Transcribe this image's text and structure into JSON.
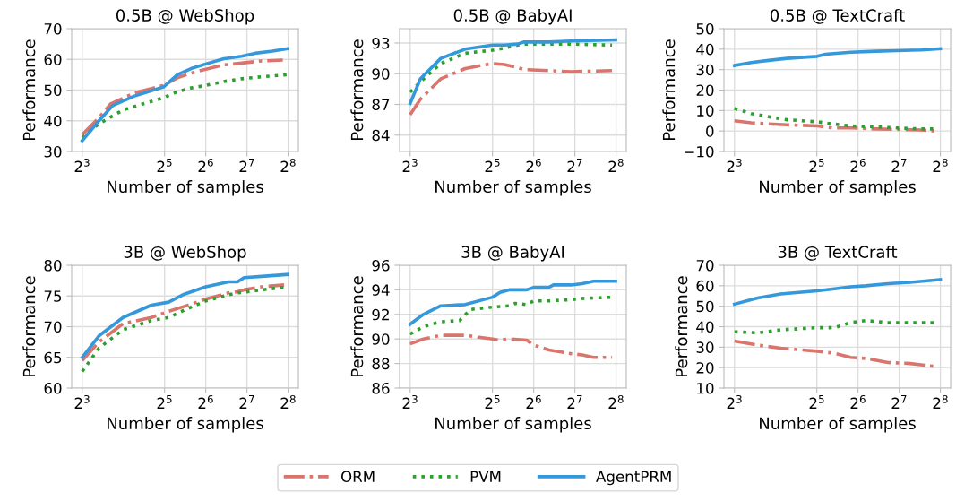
{
  "chart_data": [
    {
      "type": "line",
      "title": "0.5B @ WebShop",
      "xlabel": "Number of samples",
      "ylabel": "Performance",
      "log": "x",
      "xlim": [
        6.7,
        304
      ],
      "xticks": [
        {
          "value": 8,
          "label": "2$^{3}$"
        },
        {
          "value": 32,
          "label": "2$^{5}$"
        },
        {
          "value": 64,
          "label": "2$^{6}$"
        },
        {
          "value": 128,
          "label": "2$^{7}$"
        },
        {
          "value": 256,
          "label": "2$^{8}$"
        }
      ],
      "ylim": [
        30,
        70
      ],
      "yticks": [
        30,
        40,
        50,
        60,
        70
      ],
      "grid": true,
      "series": [
        {
          "color": "#d9756d",
          "line_style": "dashdot",
          "x": [
            8,
            10.6,
            12.9,
            19.1,
            31.4,
            39.7,
            49.9,
            64,
            86.8,
            117,
            163,
            234
          ],
          "values": [
            35.5,
            41,
            45.5,
            49,
            51.5,
            54,
            55.5,
            56.8,
            58.2,
            58.8,
            59.5,
            59.8
          ]
        },
        {
          "color": "#2ca02c",
          "line_style": "dotted",
          "x": [
            8,
            10.6,
            15.9,
            31.4,
            39.7,
            49.9,
            64,
            86.8,
            117,
            163,
            252
          ],
          "values": [
            34.5,
            39,
            43.5,
            47.5,
            49.5,
            50.7,
            51.5,
            52.8,
            53.7,
            54.3,
            55
          ]
        },
        {
          "color": "#3498db",
          "line_style": "solid",
          "x": [
            8,
            10.6,
            13.4,
            19.1,
            31.4,
            39.7,
            49.9,
            64,
            86.8,
            117,
            147,
            197,
            254
          ],
          "values": [
            33.5,
            40,
            45,
            48,
            51,
            55,
            57,
            58.5,
            60.2,
            61,
            62,
            62.7,
            63.5
          ]
        }
      ]
    },
    {
      "type": "line",
      "title": "0.5B @ BabyAI",
      "xlabel": "Number of samples",
      "ylabel": "Performance",
      "log": "x",
      "xlim": [
        6.7,
        304
      ],
      "xticks": [
        {
          "value": 8,
          "label": "2$^{3}$"
        },
        {
          "value": 32,
          "label": "2$^{5}$"
        },
        {
          "value": 64,
          "label": "2$^{6}$"
        },
        {
          "value": 128,
          "label": "2$^{7}$"
        },
        {
          "value": 256,
          "label": "2$^{8}$"
        }
      ],
      "ylim": [
        82.4,
        94.4
      ],
      "yticks": [
        84,
        87,
        90,
        93
      ],
      "grid": true,
      "series": [
        {
          "color": "#d9756d",
          "line_style": "dashdot",
          "x": [
            8,
            9.5,
            13.4,
            20.2,
            32,
            39.1,
            48.8,
            54.6,
            82.7,
            120,
            239
          ],
          "values": [
            86,
            87.5,
            89.5,
            90.5,
            91,
            90.9,
            90.6,
            90.4,
            90.3,
            90.2,
            90.3
          ]
        },
        {
          "color": "#2ca02c",
          "line_style": "dotted",
          "x": [
            8,
            9.5,
            13.4,
            20.2,
            32,
            39.1,
            48.8,
            54.6,
            82.7,
            120,
            239
          ],
          "values": [
            88.2,
            89.2,
            91,
            92,
            92.3,
            92.5,
            92.8,
            92.9,
            92.9,
            92.9,
            92.8
          ]
        },
        {
          "color": "#3498db",
          "line_style": "solid",
          "x": [
            8,
            9.5,
            13.4,
            20.2,
            32,
            39.1,
            48.8,
            54.6,
            82.7,
            120,
            254
          ],
          "values": [
            87.1,
            89.5,
            91.5,
            92.4,
            92.8,
            92.8,
            92.9,
            93.1,
            93.1,
            93.2,
            93.3
          ]
        }
      ]
    },
    {
      "type": "line",
      "title": "0.5B @ TextCraft",
      "xlabel": "Number of samples",
      "ylabel": "Performance",
      "log": "x",
      "xlim": [
        6.7,
        304
      ],
      "xticks": [
        {
          "value": 8,
          "label": "2$^{3}$"
        },
        {
          "value": 32,
          "label": "2$^{5}$"
        },
        {
          "value": 64,
          "label": "2$^{6}$"
        },
        {
          "value": 128,
          "label": "2$^{7}$"
        },
        {
          "value": 256,
          "label": "2$^{8}$"
        }
      ],
      "ylim": [
        -10,
        50
      ],
      "yticks": [
        {
          "value": -10,
          "label": "−10"
        },
        0,
        10,
        20,
        30,
        40,
        50
      ],
      "grid": true,
      "series": [
        {
          "color": "#d9756d",
          "line_style": "dashdot",
          "x": [
            8,
            10.6,
            14.2,
            19.4,
            32.2,
            41.4,
            56.5,
            87.4,
            122,
            186,
            231
          ],
          "values": [
            5,
            4,
            3.5,
            3,
            2.5,
            1.5,
            1.5,
            1,
            0.8,
            0.5,
            0
          ]
        },
        {
          "color": "#2ca02c",
          "line_style": "dotted",
          "x": [
            8,
            10.6,
            14.2,
            19.4,
            32.2,
            41.4,
            56.5,
            87.4,
            122,
            186,
            239
          ],
          "values": [
            11,
            8.5,
            7,
            5.5,
            4.5,
            3.5,
            2.5,
            2,
            1.5,
            1,
            1
          ]
        },
        {
          "color": "#3498db",
          "line_style": "solid",
          "x": [
            8,
            10.6,
            14.2,
            19.4,
            32.2,
            37,
            56.5,
            87.4,
            122,
            186,
            256
          ],
          "values": [
            32,
            33.5,
            34.5,
            35.5,
            36.5,
            37.5,
            38.5,
            39,
            39.3,
            39.6,
            40.2
          ]
        }
      ]
    },
    {
      "type": "line",
      "title": "3B @ WebShop",
      "xlabel": "Number of samples",
      "ylabel": "Performance",
      "log": "x",
      "xlim": [
        6.7,
        304
      ],
      "xticks": [
        {
          "value": 8,
          "label": "2$^{3}$"
        },
        {
          "value": 32,
          "label": "2$^{5}$"
        },
        {
          "value": 64,
          "label": "2$^{6}$"
        },
        {
          "value": 128,
          "label": "2$^{7}$"
        },
        {
          "value": 256,
          "label": "2$^{8}$"
        }
      ],
      "ylim": [
        60,
        80
      ],
      "yticks": [
        60,
        65,
        70,
        75,
        80
      ],
      "grid": true,
      "series": [
        {
          "color": "#d9756d",
          "line_style": "dashdot",
          "x": [
            8,
            10.6,
            15.9,
            25.6,
            34.3,
            44.6,
            64,
            93.7,
            109,
            122,
            164,
            239
          ],
          "values": [
            64.5,
            67.5,
            70.5,
            71.5,
            72.5,
            73.3,
            74.5,
            75.5,
            75.7,
            76,
            76.5,
            76.8
          ]
        },
        {
          "color": "#2ca02c",
          "line_style": "dotted",
          "x": [
            8,
            10.6,
            15.9,
            25.6,
            34.3,
            44.6,
            64,
            93.7,
            109,
            122,
            164,
            239
          ],
          "values": [
            62.7,
            66.5,
            69.5,
            71,
            71.5,
            72.7,
            74.2,
            75.2,
            75.5,
            75.6,
            76,
            76.4
          ]
        },
        {
          "color": "#3498db",
          "line_style": "solid",
          "x": [
            8,
            10.6,
            15.9,
            25.6,
            34.3,
            44.6,
            64,
            93.7,
            109,
            122,
            164,
            254
          ],
          "values": [
            65,
            68.5,
            71.5,
            73.5,
            74,
            75.3,
            76.5,
            77.3,
            77.3,
            78,
            78.2,
            78.5
          ]
        }
      ]
    },
    {
      "type": "line",
      "title": "3B @ BabyAI",
      "xlabel": "Number of samples",
      "ylabel": "Performance",
      "log": "x",
      "xlim": [
        6.7,
        304
      ],
      "xticks": [
        {
          "value": 8,
          "label": "2$^{3}$"
        },
        {
          "value": 32,
          "label": "2$^{5}$"
        },
        {
          "value": 64,
          "label": "2$^{6}$"
        },
        {
          "value": 128,
          "label": "2$^{7}$"
        },
        {
          "value": 256,
          "label": "2$^{8}$"
        }
      ],
      "ylim": [
        86,
        96
      ],
      "yticks": [
        86,
        88,
        90,
        92,
        94,
        96
      ],
      "grid": true,
      "series": [
        {
          "color": "#d9756d",
          "line_style": "dashdot",
          "x": [
            8,
            10,
            13.4,
            20.2,
            32,
            36.3,
            42.2,
            56.9,
            64,
            82.7,
            120,
            145,
            175,
            239
          ],
          "values": [
            89.6,
            90,
            90.3,
            90.3,
            90,
            89.9,
            90,
            89.9,
            89.5,
            89.1,
            88.8,
            88.7,
            88.5,
            88.5
          ]
        },
        {
          "color": "#2ca02c",
          "line_style": "dotted",
          "x": [
            8,
            10,
            13.4,
            18.4,
            22.1,
            32,
            42.2,
            46.9,
            56.9,
            64,
            82.7,
            120,
            145,
            239
          ],
          "values": [
            90.4,
            91,
            91.4,
            91.5,
            92.4,
            92.6,
            92.7,
            92.9,
            92.8,
            93.1,
            93.1,
            93.2,
            93.3,
            93.4
          ]
        },
        {
          "color": "#3498db",
          "line_style": "solid",
          "x": [
            8,
            10,
            13.4,
            20.2,
            32,
            36.3,
            42.2,
            56.9,
            64,
            82.7,
            89.3,
            120,
            145,
            175,
            254
          ],
          "values": [
            91.2,
            92,
            92.7,
            92.8,
            93.4,
            93.8,
            94,
            94,
            94.2,
            94.2,
            94.4,
            94.4,
            94.5,
            94.7,
            94.7
          ]
        }
      ]
    },
    {
      "type": "line",
      "title": "3B @ TextCraft",
      "xlabel": "Number of samples",
      "ylabel": "Performance",
      "log": "x",
      "xlim": [
        6.7,
        304
      ],
      "xticks": [
        {
          "value": 8,
          "label": "2$^{3}$"
        },
        {
          "value": 32,
          "label": "2$^{5}$"
        },
        {
          "value": 64,
          "label": "2$^{6}$"
        },
        {
          "value": 128,
          "label": "2$^{7}$"
        },
        {
          "value": 256,
          "label": "2$^{8}$"
        }
      ],
      "ylim": [
        10,
        70
      ],
      "yticks": [
        10,
        20,
        30,
        40,
        50,
        60,
        70
      ],
      "grid": true,
      "legend": "bottom",
      "series": [
        {
          "name": "ORM",
          "color": "#d9756d",
          "line_style": "dashdot",
          "x": [
            8,
            11.8,
            17.4,
            32.2,
            43.1,
            56.5,
            73,
            106,
            154,
            239
          ],
          "values": [
            33,
            31,
            29.5,
            28,
            27,
            25,
            24.5,
            22.5,
            22,
            20.5
          ]
        },
        {
          "name": "PVM",
          "color": "#2ca02c",
          "line_style": "dotted",
          "x": [
            8,
            11.8,
            17.4,
            32.2,
            43.1,
            56.5,
            73,
            106,
            154,
            239
          ],
          "values": [
            37.5,
            37,
            38.5,
            39.5,
            39.5,
            42,
            43,
            42,
            42,
            42
          ]
        },
        {
          "name": "AgentPRM",
          "color": "#3498db",
          "line_style": "solid",
          "x": [
            8,
            11.8,
            17.4,
            32.2,
            43.1,
            56.5,
            73,
            106,
            154,
            256
          ],
          "values": [
            51,
            54,
            56,
            57.5,
            58.5,
            59.5,
            60,
            61,
            61.7,
            63
          ]
        }
      ]
    }
  ]
}
